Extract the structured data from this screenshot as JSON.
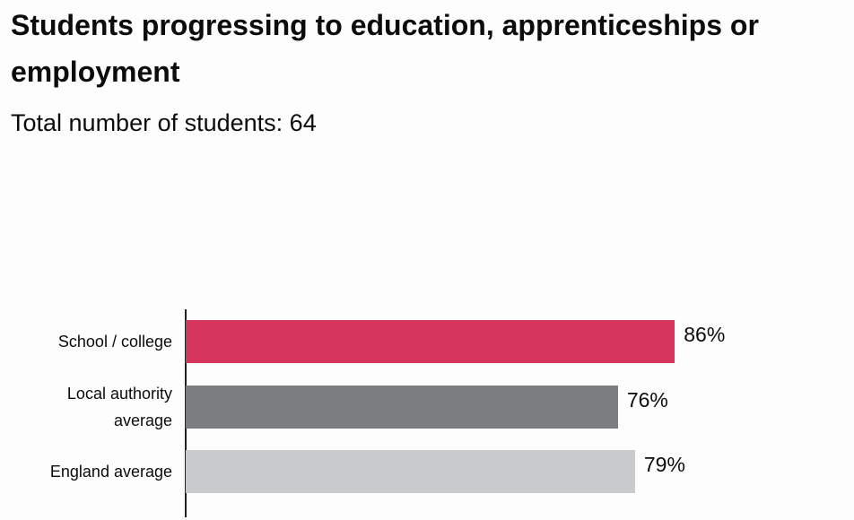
{
  "chart_data": {
    "type": "bar",
    "orientation": "horizontal",
    "title": "Students progressing to education, apprenticeships or employment",
    "subtitle": "Total number of students: 64",
    "categories": [
      "School / college",
      "Local authority average",
      "England average"
    ],
    "values": [
      86,
      76,
      79
    ],
    "value_labels": [
      "86%",
      "76%",
      "79%"
    ],
    "colors": [
      "#d4365c",
      "#7b7e7e",
      "#c9cacc"
    ],
    "xlim": [
      0,
      100
    ]
  }
}
